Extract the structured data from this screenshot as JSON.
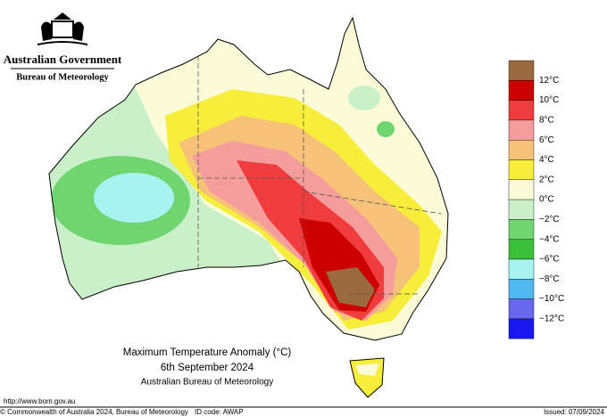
{
  "header": {
    "title": "Australian Government",
    "subtitle": "Bureau of Meteorology"
  },
  "map": {
    "title": "Maximum Temperature Anomaly (°C)",
    "date": "6th September 2024",
    "source": "Australian Bureau of Meteorology"
  },
  "legend": {
    "labels": [
      "12°C",
      "10°C",
      "8°C",
      "6°C",
      "4°C",
      "2°C",
      "0°C",
      "−2°C",
      "−4°C",
      "−6°C",
      "−8°C",
      "−10°C",
      "−12°C"
    ],
    "colors": [
      "#9a6a3e",
      "#cc0000",
      "#f03c3c",
      "#f59d9d",
      "#f6c278",
      "#f7ee3c",
      "#fbfbd8",
      "#c9f0c9",
      "#6fd66f",
      "#3cc03c",
      "#a9f2f2",
      "#4fb8ee",
      "#6868ee",
      "#1818ee"
    ]
  },
  "footer": {
    "url": "http://www.bom.gov.au",
    "copyright": "© Commonwealth of Australia 2024, Bureau of Meteorology",
    "id_code": "ID code: AWAP",
    "issued": "Issued: 07/09/2024"
  }
}
